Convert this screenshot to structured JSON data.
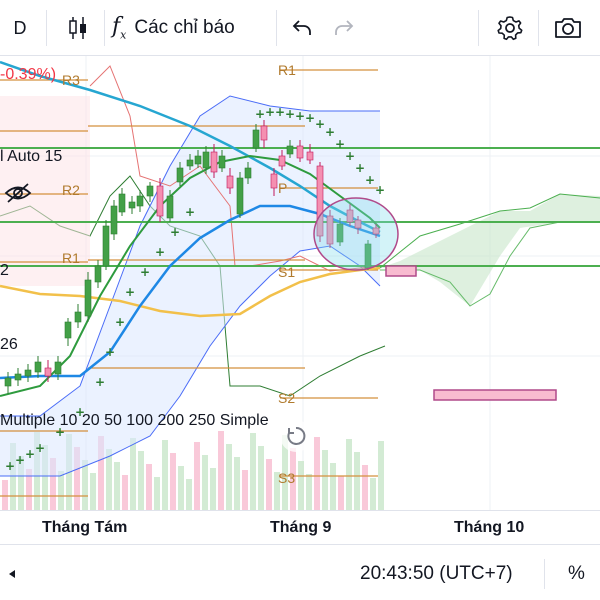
{
  "toolbar": {
    "interval": "D",
    "indicators_label": "Các chỉ báo"
  },
  "legend": {
    "change": "-0.39%)",
    "auto_label": "l Auto 15",
    "ichimoku_value": "26",
    "partial_value": "2",
    "ma_label": "Multiple 10 20 50 100 200 250 Simple"
  },
  "pivots": {
    "r3": "R3",
    "r2": "R2",
    "r1": "R1",
    "p": "P",
    "s1": "S1",
    "s2": "S2",
    "s3": "S3",
    "r1_right": "R1",
    "r2_right": "R2",
    "p_right": "P",
    "s1_right": "S1"
  },
  "time_axis": {
    "labels": [
      "Tháng Tám",
      "Tháng 9",
      "Tháng 10"
    ]
  },
  "status": {
    "clock": "20:43:50 (UTC+7)",
    "percent": "%"
  },
  "colors": {
    "up": "#43a047",
    "down": "#f48fb1",
    "pivot": "#d4903d",
    "bollinger": "#4a6cf7",
    "ma_teal": "#26a6d1",
    "ma_orange": "#f2c04a",
    "ma_green": "#2e9b3e",
    "cloud": "#c8e6c9",
    "horizontal": "#4caf50"
  },
  "icons": {
    "candles": "candlestick-icon",
    "undo": "undo-icon",
    "redo": "redo-icon",
    "settings": "gear-icon",
    "camera": "camera-icon",
    "eye": "eye-hidden-icon",
    "reset": "reset-icon",
    "status_arrow": "chevron-left-icon"
  }
}
